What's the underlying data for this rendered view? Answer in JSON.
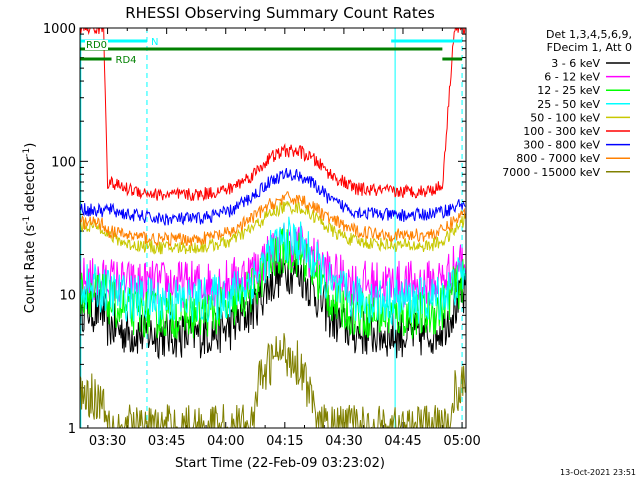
{
  "chart_data": {
    "type": "line",
    "title": "RHESSI Observing Summary Count Rates",
    "xlabel": "Start Time (22-Feb-09 03:23:02)",
    "ylabel_main": "Count Rate (s",
    "ylabel_sup1": "-1",
    "ylabel_mid": " detector",
    "ylabel_sup2": "-1",
    "ylabel_end": ")",
    "x_range_minutes": [
      0,
      98
    ],
    "x_ticks": [
      {
        "label": "03:30",
        "minute": 7
      },
      {
        "label": "03:45",
        "minute": 22
      },
      {
        "label": "04:00",
        "minute": 37
      },
      {
        "label": "04:15",
        "minute": 52
      },
      {
        "label": "04:30",
        "minute": 67
      },
      {
        "label": "04:45",
        "minute": 82
      },
      {
        "label": "05:00",
        "minute": 97
      }
    ],
    "y_scale": "log",
    "y_range": [
      1,
      1000
    ],
    "y_ticks": [
      {
        "label": "1",
        "value": 1
      },
      {
        "label": "10",
        "value": 10
      },
      {
        "label": "100",
        "value": 100
      },
      {
        "label": "1000",
        "value": 1000
      }
    ],
    "legend_header": [
      "Det 1,3,4,5,6,9,",
      "FDecim 1, Att 0"
    ],
    "series": [
      {
        "name": "3 - 6 keV",
        "color": "#000000",
        "points": [
          [
            0,
            8.0
          ],
          [
            6,
            7.5
          ],
          [
            7,
            6.0
          ],
          [
            12,
            5.2
          ],
          [
            20,
            5.0
          ],
          [
            30,
            5.0
          ],
          [
            38,
            5.6
          ],
          [
            44,
            8.0
          ],
          [
            48,
            12.0
          ],
          [
            52,
            15.5
          ],
          [
            56,
            14.5
          ],
          [
            60,
            10.0
          ],
          [
            64,
            6.6
          ],
          [
            70,
            5.2
          ],
          [
            80,
            5.0
          ],
          [
            88,
            5.0
          ],
          [
            92,
            5.8
          ],
          [
            95,
            8.0
          ],
          [
            98,
            10.0
          ]
        ]
      },
      {
        "name": "6 - 12 keV",
        "color": "#ff00ff",
        "points": [
          [
            0,
            13.0
          ],
          [
            6,
            12.5
          ],
          [
            7,
            13.0
          ],
          [
            12,
            12.0
          ],
          [
            20,
            12.0
          ],
          [
            30,
            12.0
          ],
          [
            38,
            12.5
          ],
          [
            44,
            15.0
          ],
          [
            48,
            20.0
          ],
          [
            52,
            24.0
          ],
          [
            56,
            23.0
          ],
          [
            60,
            18.0
          ],
          [
            64,
            14.0
          ],
          [
            70,
            12.0
          ],
          [
            80,
            12.0
          ],
          [
            88,
            12.0
          ],
          [
            92,
            13.0
          ],
          [
            95,
            16.0
          ],
          [
            98,
            19.0
          ]
        ]
      },
      {
        "name": "12 - 25 keV",
        "color": "#00ff00",
        "points": [
          [
            0,
            10.5
          ],
          [
            6,
            10.0
          ],
          [
            7,
            9.0
          ],
          [
            12,
            7.5
          ],
          [
            20,
            7.0
          ],
          [
            30,
            7.0
          ],
          [
            38,
            7.8
          ],
          [
            44,
            11.0
          ],
          [
            48,
            17.0
          ],
          [
            52,
            22.0
          ],
          [
            56,
            20.0
          ],
          [
            60,
            14.0
          ],
          [
            64,
            9.0
          ],
          [
            70,
            7.2
          ],
          [
            80,
            7.0
          ],
          [
            88,
            7.0
          ],
          [
            92,
            8.0
          ],
          [
            95,
            11.0
          ],
          [
            98,
            13.0
          ]
        ]
      },
      {
        "name": "25 - 50 keV",
        "color": "#00ffff",
        "points": [
          [
            0,
            11.5
          ],
          [
            6,
            11.0
          ],
          [
            7,
            10.5
          ],
          [
            12,
            9.5
          ],
          [
            20,
            9.0
          ],
          [
            30,
            9.0
          ],
          [
            38,
            9.8
          ],
          [
            44,
            13.0
          ],
          [
            48,
            20.0
          ],
          [
            52,
            26.0
          ],
          [
            56,
            24.0
          ],
          [
            60,
            17.0
          ],
          [
            64,
            11.0
          ],
          [
            70,
            9.2
          ],
          [
            80,
            9.0
          ],
          [
            88,
            9.0
          ],
          [
            92,
            9.8
          ],
          [
            95,
            12.0
          ],
          [
            98,
            15.0
          ]
        ]
      },
      {
        "name": "50 - 100 keV",
        "color": "#c8c800",
        "points": [
          [
            0,
            33.0
          ],
          [
            6,
            32.0
          ],
          [
            7,
            28.0
          ],
          [
            12,
            24.0
          ],
          [
            20,
            22.5
          ],
          [
            30,
            22.5
          ],
          [
            38,
            25.0
          ],
          [
            44,
            32.0
          ],
          [
            48,
            40.0
          ],
          [
            52,
            46.0
          ],
          [
            56,
            45.0
          ],
          [
            60,
            38.0
          ],
          [
            64,
            30.0
          ],
          [
            70,
            25.0
          ],
          [
            80,
            23.5
          ],
          [
            88,
            23.0
          ],
          [
            92,
            25.0
          ],
          [
            95,
            30.0
          ],
          [
            98,
            38.0
          ]
        ]
      },
      {
        "name": "100 - 300 keV",
        "color": "#ff0000",
        "points": [
          [
            0,
            999
          ],
          [
            6,
            999
          ],
          [
            7,
            70.0
          ],
          [
            12,
            62.0
          ],
          [
            20,
            56.0
          ],
          [
            30,
            56.0
          ],
          [
            38,
            62.0
          ],
          [
            44,
            80.0
          ],
          [
            48,
            105.0
          ],
          [
            52,
            120.0
          ],
          [
            56,
            118.0
          ],
          [
            60,
            100.0
          ],
          [
            64,
            78.0
          ],
          [
            70,
            62.0
          ],
          [
            80,
            59.0
          ],
          [
            88,
            60.0
          ],
          [
            92,
            65.0
          ],
          [
            95,
            999
          ],
          [
            98,
            999
          ]
        ]
      },
      {
        "name": "300 - 800 keV",
        "color": "#0000ff",
        "points": [
          [
            0,
            44.0
          ],
          [
            6,
            42.0
          ],
          [
            7,
            44.0
          ],
          [
            12,
            40.0
          ],
          [
            20,
            37.0
          ],
          [
            30,
            37.0
          ],
          [
            38,
            42.0
          ],
          [
            44,
            55.0
          ],
          [
            48,
            70.0
          ],
          [
            52,
            80.0
          ],
          [
            56,
            78.0
          ],
          [
            60,
            65.0
          ],
          [
            64,
            50.0
          ],
          [
            70,
            42.0
          ],
          [
            80,
            39.0
          ],
          [
            88,
            40.0
          ],
          [
            92,
            42.0
          ],
          [
            95,
            45.0
          ],
          [
            98,
            50.0
          ]
        ]
      },
      {
        "name": "800 - 7000 keV",
        "color": "#ff8000",
        "points": [
          [
            0,
            35.0
          ],
          [
            6,
            34.0
          ],
          [
            7,
            30.0
          ],
          [
            12,
            28.0
          ],
          [
            20,
            26.0
          ],
          [
            30,
            26.0
          ],
          [
            38,
            29.0
          ],
          [
            44,
            38.0
          ],
          [
            48,
            47.0
          ],
          [
            52,
            53.0
          ],
          [
            56,
            52.0
          ],
          [
            60,
            44.0
          ],
          [
            64,
            36.0
          ],
          [
            70,
            30.0
          ],
          [
            80,
            28.0
          ],
          [
            88,
            28.0
          ],
          [
            92,
            30.0
          ],
          [
            95,
            36.0
          ],
          [
            98,
            42.0
          ]
        ]
      },
      {
        "name": "7000 - 15000 keV",
        "color": "#808000",
        "points": [
          [
            0,
            1.9
          ],
          [
            4,
            1.7
          ],
          [
            6,
            1.6
          ],
          [
            8,
            1.0
          ],
          [
            44,
            1.0
          ],
          [
            45,
            2.0
          ],
          [
            48,
            3.0
          ],
          [
            50,
            3.6
          ],
          [
            53,
            3.6
          ],
          [
            56,
            3.0
          ],
          [
            58,
            2.0
          ],
          [
            60,
            1.0
          ],
          [
            94,
            1.0
          ],
          [
            95,
            1.9
          ],
          [
            98,
            2.0
          ]
        ]
      }
    ],
    "annotations": [
      {
        "label": "N",
        "color": "#00ffff",
        "row": "top",
        "segments": [
          [
            0,
            17
          ],
          [
            79,
            97
          ]
        ]
      },
      {
        "label": "RD0",
        "color": "#008000",
        "row": "middle",
        "segments": [
          [
            0,
            92
          ]
        ]
      },
      {
        "label": "RD4",
        "color": "#008000",
        "row": "bottom",
        "segments": [
          [
            0,
            8
          ],
          [
            92,
            97
          ]
        ]
      }
    ],
    "vertical_markers_solid": [
      0.2,
      80
    ],
    "vertical_markers_dashed": [
      17,
      97
    ]
  },
  "footer": {
    "date": "13-Oct-2021 23:51"
  }
}
